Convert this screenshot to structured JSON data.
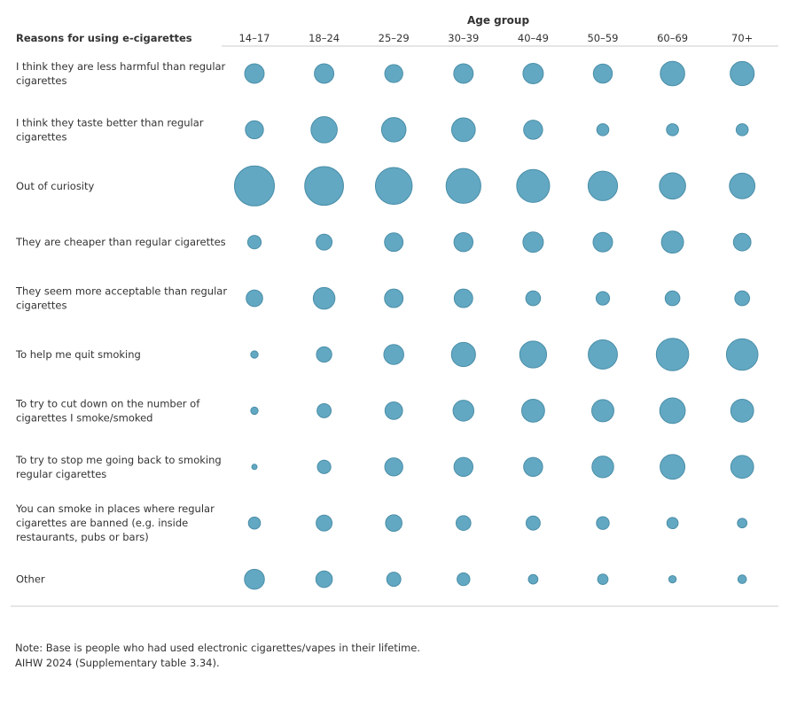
{
  "chart_data": {
    "type": "bubble",
    "column_group_title": "Age group",
    "row_header": "Reasons for using e-cigarettes",
    "columns": [
      "14–17",
      "18–24",
      "25–29",
      "30–39",
      "40–49",
      "50–59",
      "60–69",
      "70+"
    ],
    "rows": [
      {
        "label": [
          "I think they are less harmful than regular",
          "cigarettes"
        ],
        "values": [
          21,
          21,
          18,
          21,
          23,
          20,
          33,
          32
        ]
      },
      {
        "label": [
          "I think they taste better than regular",
          "cigarettes"
        ],
        "values": [
          18,
          38,
          33,
          31,
          20,
          8,
          8,
          8
        ]
      },
      {
        "label": [
          "Out of curiosity"
        ],
        "values": [
          88,
          83,
          75,
          67,
          60,
          48,
          38,
          36
        ]
      },
      {
        "label": [
          "They are cheaper than regular cigarettes"
        ],
        "values": [
          10,
          14,
          19,
          20,
          23,
          21,
          27,
          17
        ]
      },
      {
        "label": [
          "They seem more acceptable than regular",
          "cigarettes"
        ],
        "values": [
          15,
          26,
          19,
          19,
          12,
          10,
          12,
          12
        ]
      },
      {
        "label": [
          "To help me quit smoking"
        ],
        "values": [
          3,
          13,
          22,
          32,
          40,
          47,
          58,
          55
        ]
      },
      {
        "label": [
          "To try to cut down on the number of",
          "cigarettes I smoke/smoked"
        ],
        "values": [
          3,
          11,
          17,
          24,
          29,
          27,
          36,
          29
        ]
      },
      {
        "label": [
          "To try to stop me going back to smoking",
          "regular cigarettes"
        ],
        "values": [
          1,
          10,
          18,
          20,
          20,
          26,
          34,
          29
        ]
      },
      {
        "label": [
          "You can smoke in places where regular",
          "cigarettes are banned (e.g. inside",
          "restaurants, pubs or bars)"
        ],
        "values": [
          8,
          14,
          15,
          12,
          11,
          9,
          7,
          5
        ]
      },
      {
        "label": [
          "Other"
        ],
        "values": [
          22,
          15,
          11,
          9,
          5,
          6,
          3,
          4
        ]
      }
    ],
    "bubble_color": "#63A8C2",
    "bubble_stroke": "#4A8EA8"
  },
  "note": "Note: Base is people who had used electronic cigarettes/vapes in their lifetime.",
  "source": "AIHW 2024 (Supplementary table 3.34)."
}
